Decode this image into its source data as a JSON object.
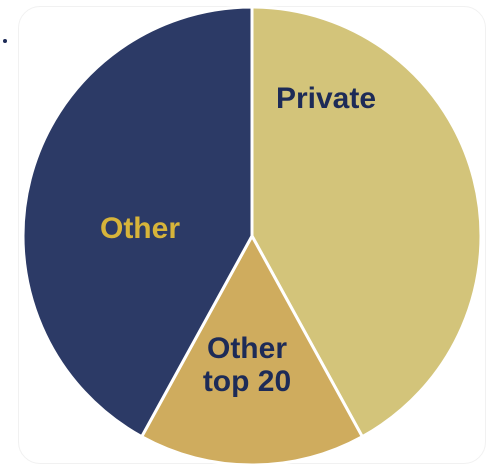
{
  "chart_data": {
    "type": "pie",
    "title": "",
    "slices": [
      {
        "label": "Private",
        "value": 42,
        "color": "#d3c47a",
        "label_color": "#1d2b57"
      },
      {
        "label": "Other top 20",
        "value": 16,
        "color": "#cfac5e",
        "label_color": "#1d2b57"
      },
      {
        "label": "Other",
        "value": 42,
        "color": "#2c3a66",
        "label_color": "#d7b43a"
      }
    ],
    "start_angle": "12 o'clock",
    "direction": "clockwise",
    "border_color": "#ffffff",
    "legend": "none (labels on slices)"
  }
}
